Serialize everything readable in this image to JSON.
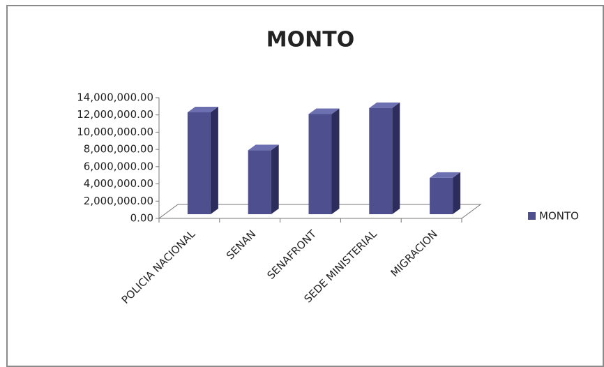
{
  "chart_data": {
    "type": "bar3d",
    "title": "MONTO",
    "categories": [
      "POLICIA NACIONAL",
      "SENAN",
      "SENAFRONT",
      "SEDE MINISTERIAL",
      "MIGRACION"
    ],
    "series": [
      {
        "name": "MONTO",
        "color": "#4d4f8f",
        "values": [
          12300000,
          7900000,
          12100000,
          12800000,
          4700000
        ]
      }
    ],
    "ylim": [
      0,
      14000000
    ],
    "yticks": [
      {
        "value": 0,
        "label": "0.00"
      },
      {
        "value": 2000000,
        "label": "2,000,000.00"
      },
      {
        "value": 4000000,
        "label": "4,000,000.00"
      },
      {
        "value": 6000000,
        "label": "6,000,000.00"
      },
      {
        "value": 8000000,
        "label": "8,000,000.00"
      },
      {
        "value": 10000000,
        "label": "10,000,000.00"
      },
      {
        "value": 12000000,
        "label": "12,000,000.00"
      },
      {
        "value": 14000000,
        "label": "14,000,000.00"
      }
    ],
    "legend": "right"
  }
}
